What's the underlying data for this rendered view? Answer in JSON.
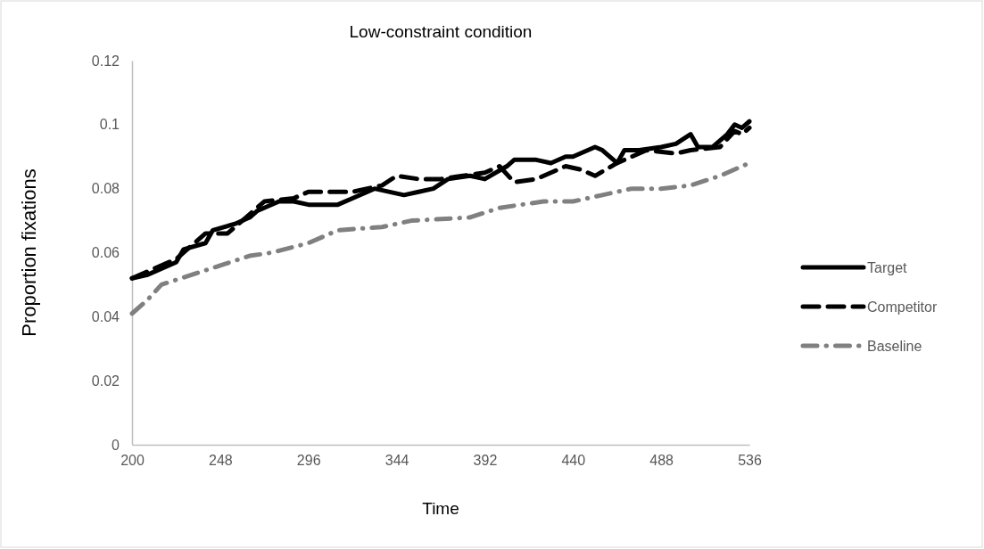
{
  "chart_data": {
    "type": "line",
    "title": "Low-constraint condition",
    "xlabel": "Time",
    "ylabel": "Proportion fixations",
    "xlim": [
      200,
      536
    ],
    "xticks": [
      200,
      248,
      296,
      344,
      392,
      440,
      488,
      536
    ],
    "ylim": [
      0,
      0.12
    ],
    "yticks": [
      {
        "value": 0,
        "label": "0"
      },
      {
        "value": 0.02,
        "label": "0.02"
      },
      {
        "value": 0.04,
        "label": "0.04"
      },
      {
        "value": 0.06,
        "label": "0.06"
      },
      {
        "value": 0.08,
        "label": "0.08"
      },
      {
        "value": 0.1,
        "label": "0.1"
      },
      {
        "value": 0.12,
        "label": "0.12"
      }
    ],
    "grid": false,
    "legend": "right",
    "marker": "none",
    "series": [
      {
        "name": "Target",
        "color": "#000000",
        "line_style": "solid",
        "x": [
          200,
          208,
          216,
          224,
          228,
          240,
          244,
          256,
          264,
          268,
          280,
          288,
          296,
          312,
          320,
          332,
          348,
          356,
          364,
          372,
          384,
          392,
          404,
          408,
          420,
          428,
          436,
          440,
          452,
          456,
          464,
          468,
          476,
          488,
          496,
          504,
          508,
          516,
          524,
          528,
          532,
          536
        ],
        "values": [
          0.052,
          0.053,
          0.055,
          0.057,
          0.061,
          0.063,
          0.067,
          0.069,
          0.071,
          0.073,
          0.076,
          0.076,
          0.075,
          0.075,
          0.077,
          0.08,
          0.078,
          0.079,
          0.08,
          0.083,
          0.084,
          0.083,
          0.087,
          0.089,
          0.089,
          0.088,
          0.09,
          0.09,
          0.093,
          0.092,
          0.088,
          0.092,
          0.092,
          0.093,
          0.094,
          0.097,
          0.093,
          0.093,
          0.097,
          0.1,
          0.099,
          0.101
        ]
      },
      {
        "name": "Competitor",
        "color": "#000000",
        "line_style": "dashed",
        "x": [
          200,
          224,
          240,
          252,
          260,
          272,
          288,
          296,
          320,
          336,
          344,
          356,
          368,
          380,
          392,
          400,
          408,
          420,
          436,
          444,
          452,
          464,
          480,
          496,
          504,
          520,
          528,
          532,
          536
        ],
        "values": [
          0.052,
          0.058,
          0.066,
          0.066,
          0.07,
          0.076,
          0.077,
          0.079,
          0.079,
          0.081,
          0.084,
          0.083,
          0.083,
          0.084,
          0.085,
          0.087,
          0.082,
          0.083,
          0.087,
          0.086,
          0.084,
          0.088,
          0.092,
          0.091,
          0.092,
          0.093,
          0.098,
          0.097,
          0.099
        ]
      },
      {
        "name": "Baseline",
        "color": "#808080",
        "line_style": "dashdot",
        "x": [
          200,
          208,
          216,
          232,
          248,
          264,
          276,
          296,
          312,
          336,
          352,
          384,
          400,
          424,
          440,
          456,
          472,
          488,
          504,
          520,
          536
        ],
        "values": [
          0.041,
          0.045,
          0.05,
          0.053,
          0.056,
          0.059,
          0.06,
          0.063,
          0.067,
          0.068,
          0.07,
          0.071,
          0.074,
          0.076,
          0.076,
          0.078,
          0.08,
          0.08,
          0.081,
          0.084,
          0.088
        ]
      }
    ]
  }
}
